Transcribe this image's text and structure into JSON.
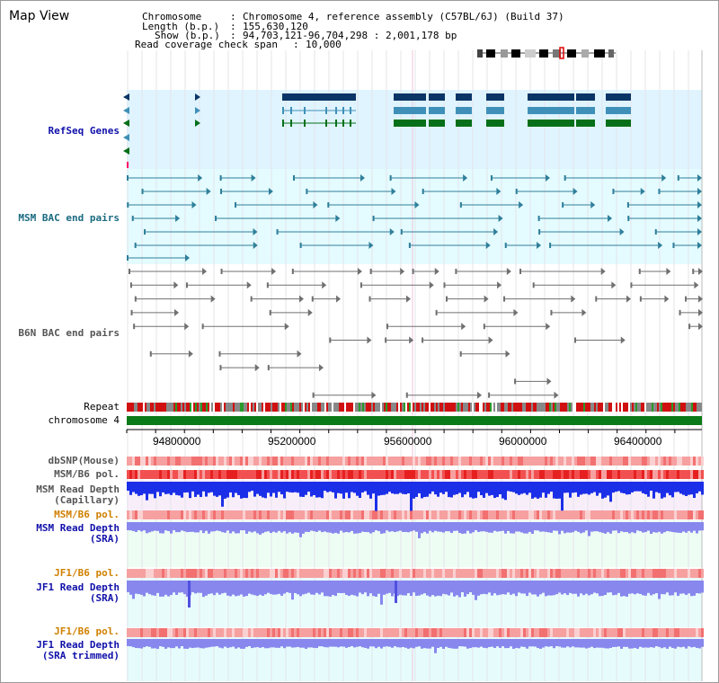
{
  "window": {
    "title": "Map View"
  },
  "header": {
    "chromosome_key": "Chromosome",
    "chromosome_value": "Chromosome 4, reference assembly (C57BL/6J) (Build 37)",
    "length_key": "Length (b.p.)",
    "length_value": "155,630,120",
    "show_key": "Show (b.p.)",
    "show_value": "94,703,121-96,704,298 : 2,001,178 bp",
    "coverage_key": "Read coverage check span",
    "coverage_value": "10,000"
  },
  "tracks": {
    "refseq": "RefSeq Genes",
    "msm_bac": "MSM BAC end pairs",
    "b6n_bac": "B6N BAC end pairs",
    "repeat": "Repeat",
    "chromosome": "chromosome 4",
    "dbsnp": "dbSNP(Mouse)",
    "msm_pol": "MSM/B6 pol.",
    "msm_depth_cap_1": "MSM Read Depth",
    "msm_depth_cap_2": "(Capillary)",
    "msm_pol_2": "MSM/B6 pol.",
    "msm_depth_sra_1": "MSM Read Depth",
    "msm_depth_sra_2": "(SRA)",
    "jf1_pol": "JF1/B6 pol.",
    "jf1_depth_1": "JF1 Read Depth",
    "jf1_depth_2": "(SRA)",
    "jf1_pol_2": "JF1/B6 pol.",
    "jf1_trim_1": "JF1 Read Depth",
    "jf1_trim_2": "(SRA trimmed)"
  },
  "axis": {
    "ticks": [
      "94800000",
      "95200000",
      "95600000",
      "96000000",
      "96400000"
    ]
  },
  "colors": {
    "refseq_bg": "#dff4ff",
    "bac_bg": "#e4fbff",
    "gene_dark": "#0b3566",
    "gene_mid": "#3f90b8",
    "gene_green": "#066f19",
    "msm_bac": "#2f7f9a",
    "b6n_bac": "#707070",
    "chromosome": "#0b7a18",
    "depth_msm": "#1b2fe8",
    "depth_sra": "#8787ee",
    "label_blue": "#1010aa",
    "label_orange": "#d08000",
    "label_teal": "#1a6a80"
  }
}
